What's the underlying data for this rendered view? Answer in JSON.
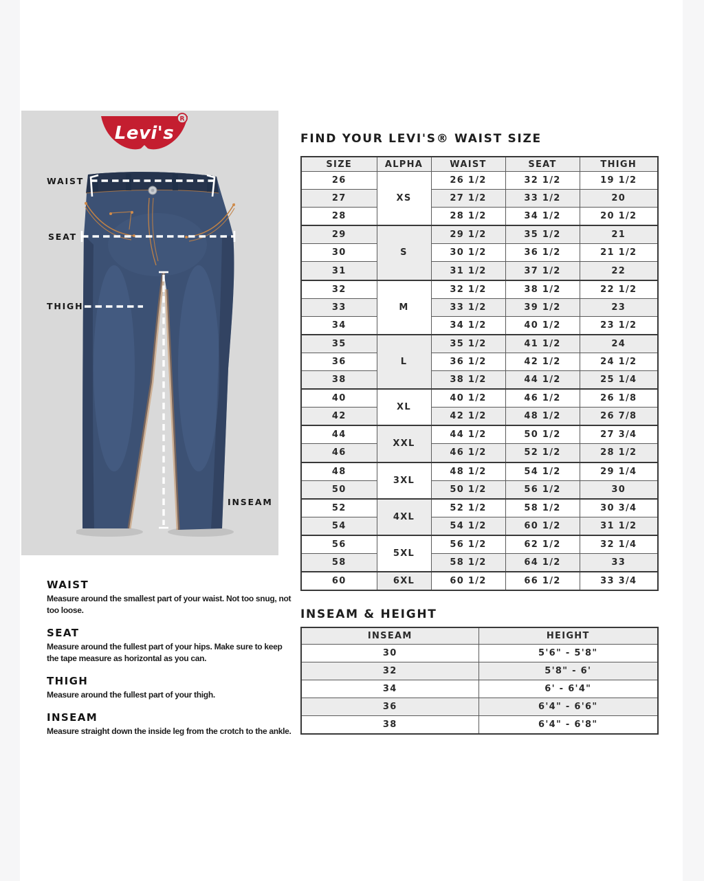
{
  "titles": {
    "main": "FIND YOUR LEVI'S® WAIST SIZE",
    "inseam": "INSEAM & HEIGHT"
  },
  "brand": {
    "logo_text": "Levi's",
    "registered_mark": "R"
  },
  "diagram": {
    "labels": {
      "waist": "WAIST",
      "seat": "SEAT",
      "thigh": "THIGH",
      "inseam": "INSEAM"
    }
  },
  "size_table": {
    "headers": [
      "SIZE",
      "ALPHA",
      "WAIST",
      "SEAT",
      "THIGH"
    ],
    "groups": [
      {
        "alpha": "XS",
        "rows": [
          [
            "26",
            "26 1/2",
            "32 1/2",
            "19 1/2"
          ],
          [
            "27",
            "27 1/2",
            "33 1/2",
            "20"
          ],
          [
            "28",
            "28 1/2",
            "34 1/2",
            "20 1/2"
          ]
        ]
      },
      {
        "alpha": "S",
        "rows": [
          [
            "29",
            "29 1/2",
            "35 1/2",
            "21"
          ],
          [
            "30",
            "30 1/2",
            "36 1/2",
            "21 1/2"
          ],
          [
            "31",
            "31 1/2",
            "37 1/2",
            "22"
          ]
        ]
      },
      {
        "alpha": "M",
        "rows": [
          [
            "32",
            "32 1/2",
            "38 1/2",
            "22 1/2"
          ],
          [
            "33",
            "33 1/2",
            "39 1/2",
            "23"
          ],
          [
            "34",
            "34 1/2",
            "40 1/2",
            "23 1/2"
          ]
        ]
      },
      {
        "alpha": "L",
        "rows": [
          [
            "35",
            "35 1/2",
            "41 1/2",
            "24"
          ],
          [
            "36",
            "36 1/2",
            "42 1/2",
            "24 1/2"
          ],
          [
            "38",
            "38 1/2",
            "44 1/2",
            "25 1/4"
          ]
        ]
      },
      {
        "alpha": "XL",
        "rows": [
          [
            "40",
            "40 1/2",
            "46 1/2",
            "26 1/8"
          ],
          [
            "42",
            "42 1/2",
            "48 1/2",
            "26 7/8"
          ]
        ]
      },
      {
        "alpha": "XXL",
        "rows": [
          [
            "44",
            "44 1/2",
            "50 1/2",
            "27 3/4"
          ],
          [
            "46",
            "46 1/2",
            "52 1/2",
            "28 1/2"
          ]
        ]
      },
      {
        "alpha": "3XL",
        "rows": [
          [
            "48",
            "48 1/2",
            "54 1/2",
            "29 1/4"
          ],
          [
            "50",
            "50 1/2",
            "56 1/2",
            "30"
          ]
        ]
      },
      {
        "alpha": "4XL",
        "rows": [
          [
            "52",
            "52 1/2",
            "58 1/2",
            "30 3/4"
          ],
          [
            "54",
            "54 1/2",
            "60 1/2",
            "31 1/2"
          ]
        ]
      },
      {
        "alpha": "5XL",
        "rows": [
          [
            "56",
            "56 1/2",
            "62 1/2",
            "32 1/4"
          ],
          [
            "58",
            "58 1/2",
            "64 1/2",
            "33"
          ]
        ]
      },
      {
        "alpha": "6XL",
        "rows": [
          [
            "60",
            "60 1/2",
            "66 1/2",
            "33 3/4"
          ]
        ]
      }
    ]
  },
  "inseam_table": {
    "headers": [
      "INSEAM",
      "HEIGHT"
    ],
    "rows": [
      [
        "30",
        "5'6\" - 5'8\""
      ],
      [
        "32",
        "5'8\" - 6'"
      ],
      [
        "34",
        "6' - 6'4\""
      ],
      [
        "36",
        "6'4\" - 6'6\""
      ],
      [
        "38",
        "6'4\" - 6'8\""
      ]
    ]
  },
  "measure_guide": [
    {
      "heading": "WAIST",
      "text": "Measure around the smallest part of your waist. Not too snug, not too loose."
    },
    {
      "heading": "SEAT",
      "text": "Measure around the fullest part of your hips. Make sure to keep the tape measure as horizontal as you can."
    },
    {
      "heading": "THIGH",
      "text": "Measure around the fullest part of your thigh."
    },
    {
      "heading": "INSEAM",
      "text": "Measure straight down the inside leg from the crotch to the ankle."
    }
  ],
  "colors": {
    "logo_red": "#c41e30",
    "panel_gray": "#d9d9d9",
    "row_stripe": "#ececec",
    "border_dark": "#383838",
    "border_light": "#5a5a5a",
    "text_dark": "#2a2a2a",
    "denim_dark": "#26344d",
    "denim_mid": "#3c5174",
    "denim_light": "#56709a",
    "stitch_orange": "#c08145",
    "page_edge": "#f6f6f7"
  }
}
